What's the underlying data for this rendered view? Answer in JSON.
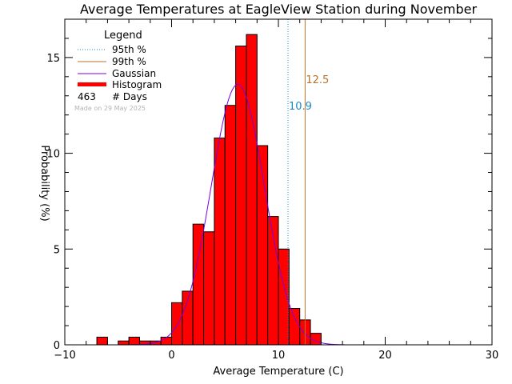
{
  "chart_data": {
    "type": "bar",
    "title": "Average Temperatures at EagleView Station during November",
    "xlabel": "Average Temperature (C)",
    "ylabel": "Probability (%)",
    "xlim": [
      -10,
      30
    ],
    "ylim": [
      0,
      17
    ],
    "x_ticks": [
      -10,
      0,
      10,
      20,
      30
    ],
    "y_ticks": [
      0,
      5,
      10,
      15
    ],
    "bin_width": 1,
    "histogram": {
      "name": "Histogram",
      "bins": [
        {
          "x0": -7,
          "value": 0.4
        },
        {
          "x0": -5,
          "value": 0.2
        },
        {
          "x0": -4,
          "value": 0.4
        },
        {
          "x0": -3,
          "value": 0.2
        },
        {
          "x0": -2,
          "value": 0.2
        },
        {
          "x0": -1,
          "value": 0.4
        },
        {
          "x0": 0,
          "value": 2.2
        },
        {
          "x0": 1,
          "value": 2.8
        },
        {
          "x0": 2,
          "value": 6.3
        },
        {
          "x0": 3,
          "value": 5.9
        },
        {
          "x0": 4,
          "value": 10.8
        },
        {
          "x0": 5,
          "value": 12.5
        },
        {
          "x0": 6,
          "value": 15.6
        },
        {
          "x0": 7,
          "value": 16.2
        },
        {
          "x0": 8,
          "value": 10.4
        },
        {
          "x0": 9,
          "value": 6.7
        },
        {
          "x0": 10,
          "value": 5.0
        },
        {
          "x0": 11,
          "value": 1.9
        },
        {
          "x0": 12,
          "value": 1.3
        },
        {
          "x0": 13,
          "value": 0.6
        }
      ]
    },
    "gaussian": {
      "name": "Gaussian",
      "mean": 6.2,
      "sigma": 2.5,
      "peak": 13.6
    },
    "percentiles": [
      {
        "name": "95th %",
        "value": 10.9,
        "label": "10.9",
        "color": "#1a8bc4",
        "style": "dotted"
      },
      {
        "name": "99th %",
        "value": 12.5,
        "label": "12.5",
        "color": "#b8732a",
        "style": "solid"
      }
    ],
    "legend": {
      "title": "Legend",
      "position": "top-left",
      "items": [
        {
          "label": "95th %",
          "kind": "dotted-line",
          "color": "#1a8bc4"
        },
        {
          "label": "99th %",
          "kind": "line",
          "color": "#b8732a"
        },
        {
          "label": "Gaussian",
          "kind": "line",
          "color": "#7a00e0"
        },
        {
          "label": "Histogram",
          "kind": "thick-line",
          "color": "#ff0000"
        }
      ],
      "days_count": "463",
      "days_label": "# Days",
      "made_on": "Made on 29 May 2025"
    },
    "colors": {
      "bars": "#ff0000",
      "bar_outline": "#000000",
      "gaussian": "#7a00e0"
    }
  }
}
